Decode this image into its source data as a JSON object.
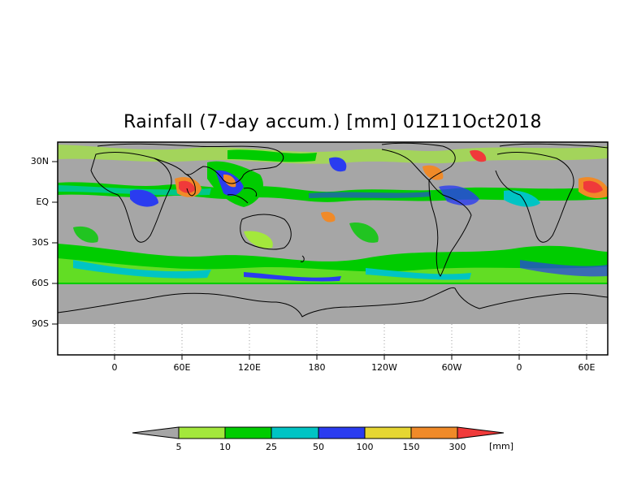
{
  "title": "Rainfall (7-day accum.) [mm] 01Z11Oct2018",
  "y_tick_labels": [
    "30N",
    "EQ",
    "30S",
    "60S",
    "90S"
  ],
  "x_tick_labels": [
    "0",
    "60E",
    "120E",
    "180",
    "120W",
    "60W",
    "0",
    "60E"
  ],
  "colorbar": {
    "labels": [
      "5",
      "10",
      "25",
      "50",
      "100",
      "150",
      "300"
    ],
    "unit": "[mm]",
    "colors": [
      "#a6a6a6",
      "#a3e83c",
      "#00cc00",
      "#00c4c4",
      "#2a3cf0",
      "#e6d632",
      "#f08a28",
      "#f03a3a"
    ]
  },
  "colors": {
    "no_rain": "#a6a6a6",
    "coastline": "#000000",
    "frame": "#000000"
  }
}
